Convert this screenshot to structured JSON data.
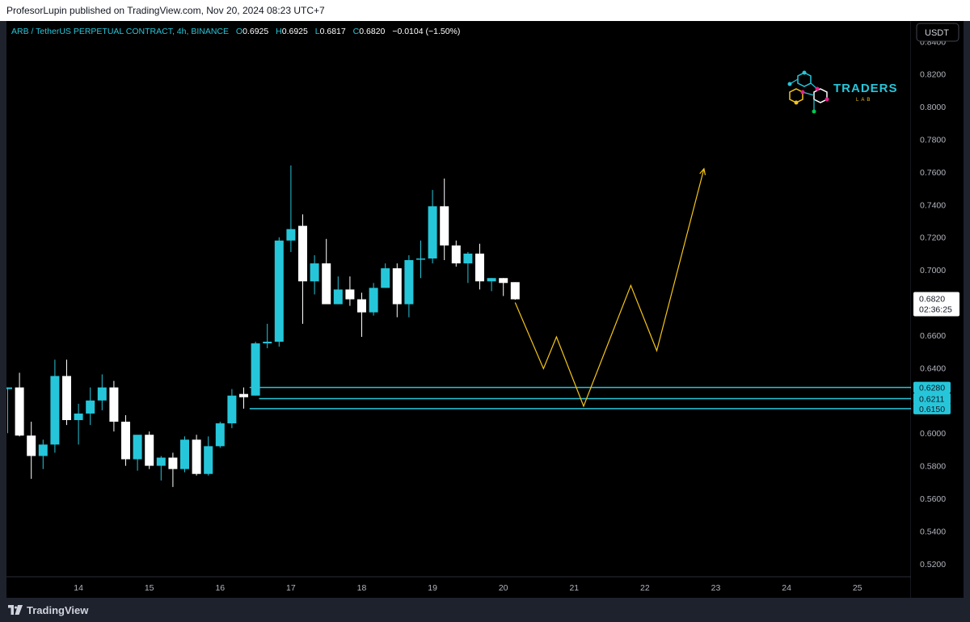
{
  "header": {
    "published": "ProfesorLupin published on TradingView.com, Nov 20, 2024 08:23 UTC+7"
  },
  "footer": {
    "brand": "TradingView"
  },
  "legend": {
    "symbol": "ARB / TetherUS PERPETUAL CONTRACT, 4h, BINANCE",
    "o_label": "O",
    "o_value": "0.6925",
    "h_label": "H",
    "h_value": "0.6925",
    "l_label": "L",
    "l_value": "0.6817",
    "c_label": "C",
    "c_value": "0.6820",
    "change": "−0.0104 (−1.50%)"
  },
  "currency_button": "USDT",
  "watermark": {
    "line1": "TRADERS",
    "line2": "LAB"
  },
  "colors": {
    "up": "#26c6da",
    "down": "#ffffff",
    "projection": "#f5c518",
    "zone_lines": "#26c6da",
    "axis_text": "#b2b5be"
  },
  "price_labels": {
    "last": "0.6820",
    "countdown": "02:36:25",
    "zones": [
      "0.6280",
      "0.6211",
      "0.6150"
    ]
  },
  "chart_data": {
    "type": "candlestick",
    "timeframe": "4h",
    "y_ticks": [
      "0.8400",
      "0.8200",
      "0.8000",
      "0.7800",
      "0.7600",
      "0.7400",
      "0.7200",
      "0.7000",
      "0.6800",
      "0.6600",
      "0.6400",
      "0.6200",
      "0.6000",
      "0.5800",
      "0.5600",
      "0.5400",
      "0.5200"
    ],
    "ylim": [
      0.512,
      0.8525
    ],
    "x_labels": [
      {
        "label": "14",
        "slot": 14
      },
      {
        "label": "15",
        "slot": 20
      },
      {
        "label": "16",
        "slot": 26
      },
      {
        "label": "17",
        "slot": 32
      },
      {
        "label": "18",
        "slot": 38
      },
      {
        "label": "19",
        "slot": 44
      },
      {
        "label": "20",
        "slot": 50
      },
      {
        "label": "21",
        "slot": 56
      },
      {
        "label": "22",
        "slot": 62
      },
      {
        "label": "23",
        "slot": 68
      },
      {
        "label": "24",
        "slot": 74
      },
      {
        "label": "25",
        "slot": 80
      }
    ],
    "candles": [
      {
        "slot": 8,
        "o": 0.627,
        "h": 0.628,
        "l": 0.6,
        "c": 0.628
      },
      {
        "slot": 9,
        "o": 0.628,
        "h": 0.637,
        "l": 0.598,
        "c": 0.5985
      },
      {
        "slot": 10,
        "o": 0.5985,
        "h": 0.607,
        "l": 0.572,
        "c": 0.586
      },
      {
        "slot": 11,
        "o": 0.586,
        "h": 0.596,
        "l": 0.578,
        "c": 0.593
      },
      {
        "slot": 12,
        "o": 0.593,
        "h": 0.645,
        "l": 0.588,
        "c": 0.635
      },
      {
        "slot": 13,
        "o": 0.635,
        "h": 0.645,
        "l": 0.605,
        "c": 0.608
      },
      {
        "slot": 14,
        "o": 0.608,
        "h": 0.618,
        "l": 0.593,
        "c": 0.612
      },
      {
        "slot": 15,
        "o": 0.612,
        "h": 0.628,
        "l": 0.605,
        "c": 0.62
      },
      {
        "slot": 16,
        "o": 0.62,
        "h": 0.636,
        "l": 0.614,
        "c": 0.628
      },
      {
        "slot": 17,
        "o": 0.628,
        "h": 0.632,
        "l": 0.601,
        "c": 0.607
      },
      {
        "slot": 18,
        "o": 0.607,
        "h": 0.611,
        "l": 0.58,
        "c": 0.584
      },
      {
        "slot": 19,
        "o": 0.584,
        "h": 0.596,
        "l": 0.577,
        "c": 0.599
      },
      {
        "slot": 20,
        "o": 0.599,
        "h": 0.601,
        "l": 0.578,
        "c": 0.58
      },
      {
        "slot": 21,
        "o": 0.58,
        "h": 0.586,
        "l": 0.571,
        "c": 0.585
      },
      {
        "slot": 22,
        "o": 0.585,
        "h": 0.588,
        "l": 0.567,
        "c": 0.578
      },
      {
        "slot": 23,
        "o": 0.578,
        "h": 0.598,
        "l": 0.576,
        "c": 0.596
      },
      {
        "slot": 24,
        "o": 0.596,
        "h": 0.599,
        "l": 0.574,
        "c": 0.575
      },
      {
        "slot": 25,
        "o": 0.575,
        "h": 0.598,
        "l": 0.574,
        "c": 0.592
      },
      {
        "slot": 26,
        "o": 0.592,
        "h": 0.607,
        "l": 0.591,
        "c": 0.606
      },
      {
        "slot": 27,
        "o": 0.606,
        "h": 0.627,
        "l": 0.603,
        "c": 0.623
      },
      {
        "slot": 28,
        "o": 0.624,
        "h": 0.628,
        "l": 0.615,
        "c": 0.622
      },
      {
        "slot": 29,
        "o": 0.623,
        "h": 0.656,
        "l": 0.623,
        "c": 0.655
      },
      {
        "slot": 30,
        "o": 0.655,
        "h": 0.667,
        "l": 0.652,
        "c": 0.656
      },
      {
        "slot": 31,
        "o": 0.656,
        "h": 0.72,
        "l": 0.653,
        "c": 0.718
      },
      {
        "slot": 32,
        "o": 0.718,
        "h": 0.764,
        "l": 0.711,
        "c": 0.725
      },
      {
        "slot": 33,
        "o": 0.727,
        "h": 0.734,
        "l": 0.667,
        "c": 0.693
      },
      {
        "slot": 34,
        "o": 0.693,
        "h": 0.709,
        "l": 0.685,
        "c": 0.704
      },
      {
        "slot": 35,
        "o": 0.704,
        "h": 0.719,
        "l": 0.68,
        "c": 0.679
      },
      {
        "slot": 36,
        "o": 0.679,
        "h": 0.696,
        "l": 0.679,
        "c": 0.688
      },
      {
        "slot": 37,
        "o": 0.688,
        "h": 0.696,
        "l": 0.678,
        "c": 0.682
      },
      {
        "slot": 38,
        "o": 0.682,
        "h": 0.686,
        "l": 0.659,
        "c": 0.674
      },
      {
        "slot": 39,
        "o": 0.674,
        "h": 0.692,
        "l": 0.672,
        "c": 0.689
      },
      {
        "slot": 40,
        "o": 0.689,
        "h": 0.704,
        "l": 0.689,
        "c": 0.701
      },
      {
        "slot": 41,
        "o": 0.701,
        "h": 0.704,
        "l": 0.671,
        "c": 0.679
      },
      {
        "slot": 42,
        "o": 0.679,
        "h": 0.709,
        "l": 0.671,
        "c": 0.706
      },
      {
        "slot": 43,
        "o": 0.707,
        "h": 0.718,
        "l": 0.695,
        "c": 0.707
      },
      {
        "slot": 44,
        "o": 0.707,
        "h": 0.749,
        "l": 0.704,
        "c": 0.739
      },
      {
        "slot": 45,
        "o": 0.739,
        "h": 0.756,
        "l": 0.706,
        "c": 0.715
      },
      {
        "slot": 46,
        "o": 0.715,
        "h": 0.718,
        "l": 0.702,
        "c": 0.704
      },
      {
        "slot": 47,
        "o": 0.704,
        "h": 0.711,
        "l": 0.692,
        "c": 0.71
      },
      {
        "slot": 48,
        "o": 0.71,
        "h": 0.716,
        "l": 0.688,
        "c": 0.693
      },
      {
        "slot": 49,
        "o": 0.693,
        "h": 0.695,
        "l": 0.687,
        "c": 0.695
      },
      {
        "slot": 50,
        "o": 0.695,
        "h": 0.695,
        "l": 0.684,
        "c": 0.692
      },
      {
        "slot": 51,
        "o": 0.6925,
        "h": 0.6925,
        "l": 0.6817,
        "c": 0.682
      }
    ],
    "zones": [
      0.628,
      0.6211,
      0.615
    ],
    "projection_path": [
      {
        "slot": 51.0,
        "price": 0.68
      },
      {
        "slot": 53.4,
        "price": 0.6395
      },
      {
        "slot": 54.5,
        "price": 0.659
      },
      {
        "slot": 56.8,
        "price": 0.6165
      },
      {
        "slot": 60.8,
        "price": 0.6905
      },
      {
        "slot": 63.0,
        "price": 0.6505
      },
      {
        "slot": 67.0,
        "price": 0.762
      }
    ]
  }
}
